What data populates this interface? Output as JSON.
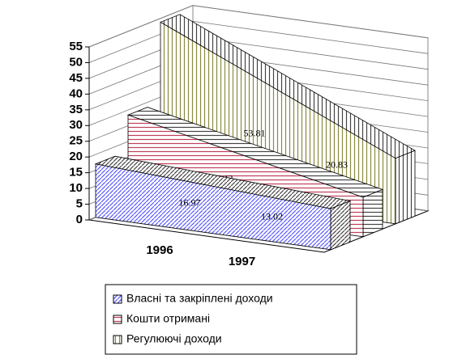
{
  "chart_data": {
    "type": "area3d",
    "categories": [
      "1996",
      "1997"
    ],
    "series": [
      {
        "name": "Власні та закріплені доходи",
        "color": "#5a5aff",
        "values": [
          16.97,
          13.02
        ]
      },
      {
        "name": "Кошти отримані",
        "color": "#c0405a",
        "values": [
          28.42,
          12.54
        ]
      },
      {
        "name": "Регулюючі доходи",
        "color": "#8a8a40",
        "values": [
          53.81,
          20.83
        ]
      }
    ],
    "ylim": [
      0,
      55
    ],
    "yticks": [
      0,
      5,
      10,
      15,
      20,
      25,
      30,
      35,
      40,
      45,
      50,
      55
    ],
    "grid": true,
    "legend": "bottom"
  }
}
